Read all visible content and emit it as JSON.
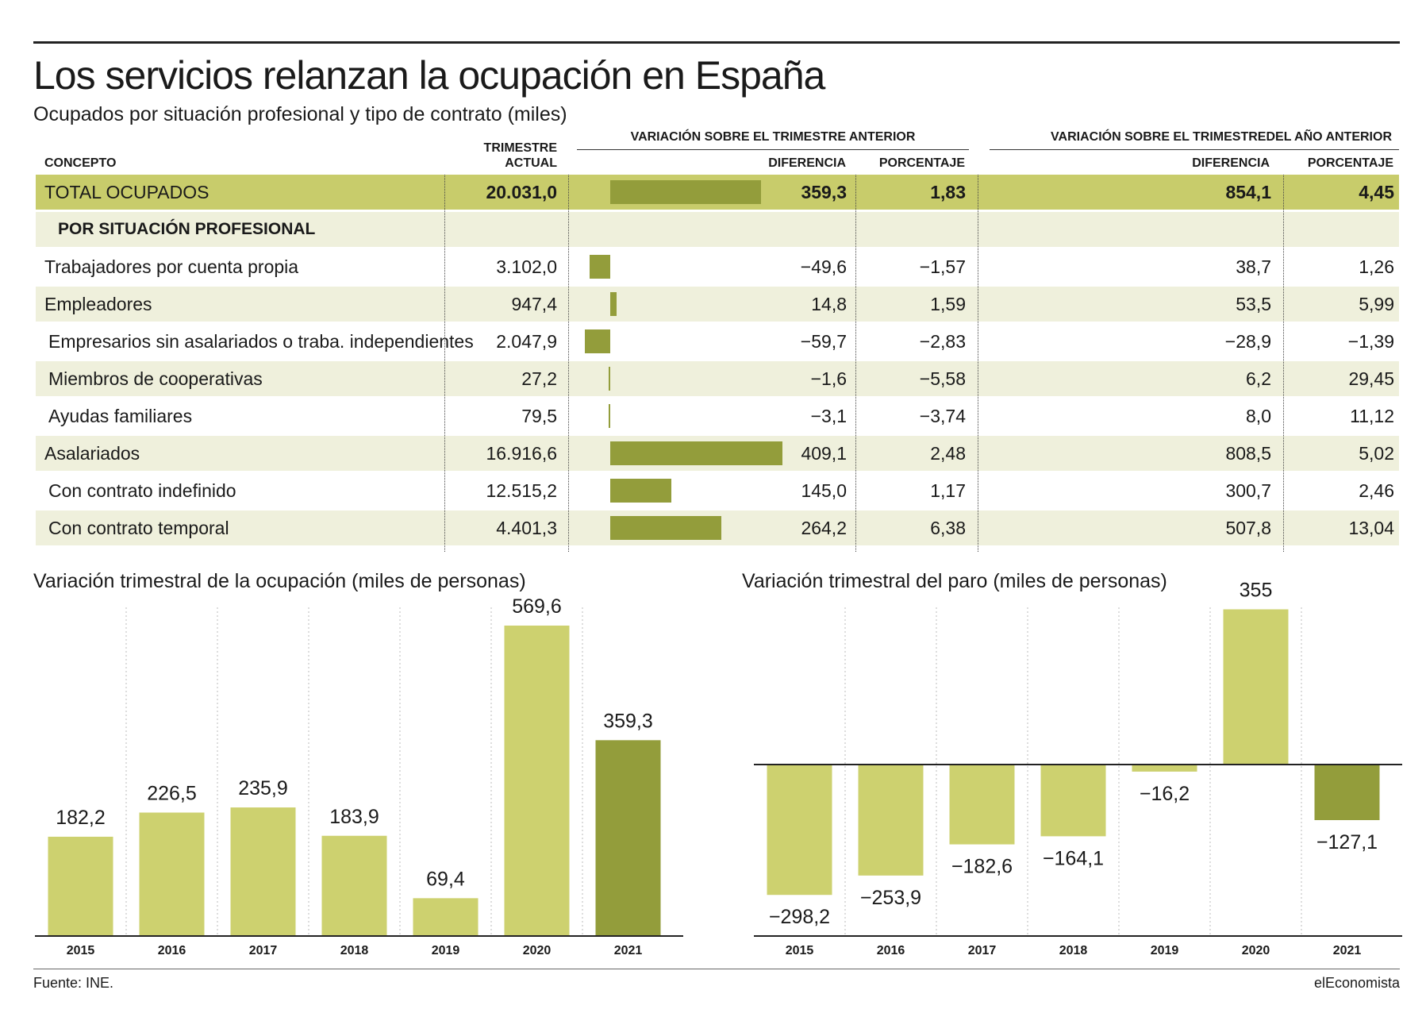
{
  "title": "Los servicios relanzan la ocupación en España",
  "subtitle": "Ocupados por situación profesional y tipo de contrato (miles)",
  "table": {
    "group1": "VARIACIÓN SOBRE EL TRIMESTRE ANTERIOR",
    "group2": "VARIACIÓN SOBRE EL TRIMESTREDEL AÑO  ANTERIOR",
    "col_concepto": "CONCEPTO",
    "col_trimestre_1": "TRIMESTRE",
    "col_trimestre_2": "ACTUAL",
    "col_diferencia": "DIFERENCIA",
    "col_porcentaje": "PORCENTAJE",
    "col_diferencia2": "DIFERENCIA",
    "col_porcentaje2": "PORCENTAJE",
    "total": {
      "concepto": "TOTAL OCUPADOS",
      "actual": "20.031,0",
      "dif": "359,3",
      "pct": "1,83",
      "dif_anual": "854,1",
      "pct_anual": "4,45",
      "bar": 359.3
    },
    "section": "POR SITUACIÓN PROFESIONAL",
    "rows": [
      {
        "concepto": "Trabajadores por cuenta propia",
        "actual": "3.102,0",
        "dif": "−49,6",
        "pct": "−1,57",
        "dif_anual": "38,7",
        "pct_anual": "1,26",
        "bar": -49.6
      },
      {
        "concepto": "Empleadores",
        "actual": "947,4",
        "dif": "14,8",
        "pct": "1,59",
        "dif_anual": "53,5",
        "pct_anual": "5,99",
        "bar": 14.8
      },
      {
        "concepto": "Empresarios sin asalariados o traba. independientes",
        "actual": "2.047,9",
        "dif": "−59,7",
        "pct": "−2,83",
        "dif_anual": "−28,9",
        "pct_anual": "−1,39",
        "bar": -59.7
      },
      {
        "concepto": "Miembros de cooperativas",
        "actual": "27,2",
        "dif": "−1,6",
        "pct": "−5,58",
        "dif_anual": "6,2",
        "pct_anual": "29,45",
        "bar": -1.6
      },
      {
        "concepto": "Ayudas familiares",
        "actual": "79,5",
        "dif": "−3,1",
        "pct": "−3,74",
        "dif_anual": "8,0",
        "pct_anual": "11,12",
        "bar": -3.1
      },
      {
        "concepto": "Asalariados",
        "actual": "16.916,6",
        "dif": "409,1",
        "pct": "2,48",
        "dif_anual": "808,5",
        "pct_anual": "5,02",
        "bar": 409.1
      },
      {
        "concepto": "Con contrato indefinido",
        "actual": "12.515,2",
        "dif": "145,0",
        "pct": "1,17",
        "dif_anual": "300,7",
        "pct_anual": "2,46",
        "bar": 145.0
      },
      {
        "concepto": "Con contrato temporal",
        "actual": "4.401,3",
        "dif": "264,2",
        "pct": "6,38",
        "dif_anual": "507,8",
        "pct_anual": "13,04",
        "bar": 264.2
      }
    ]
  },
  "colors": {
    "light": "#cdd16f",
    "dark": "#939d3b",
    "total_bg": "#c8cc6b",
    "shade": "#eff0dc"
  },
  "chart_data": [
    {
      "type": "bar",
      "title": "Variación trimestral de la ocupación (miles de personas)",
      "categories": [
        "2015",
        "2016",
        "2017",
        "2018",
        "2019",
        "2020",
        "2021"
      ],
      "values": [
        182.2,
        226.5,
        235.9,
        183.9,
        69.4,
        569.6,
        359.3
      ],
      "labels": [
        "182,2",
        "226,5",
        "235,9",
        "183,9",
        "69,4",
        "569,6",
        "359,3"
      ],
      "highlight_last": true,
      "grid": "vertical dotted"
    },
    {
      "type": "bar",
      "title": "Variación trimestral del paro (miles de personas)",
      "categories": [
        "2015",
        "2016",
        "2017",
        "2018",
        "2019",
        "2020",
        "2021"
      ],
      "values": [
        -298.2,
        -253.9,
        -182.6,
        -164.1,
        -16.2,
        355,
        -127.1
      ],
      "labels": [
        "−298,2",
        "−253,9",
        "−182,6",
        "−164,1",
        "−16,2",
        "355",
        "−127,1"
      ],
      "highlight_last": true,
      "grid": "vertical dotted"
    }
  ],
  "footer": {
    "source": "Fuente: INE.",
    "brand": "elEconomista"
  }
}
